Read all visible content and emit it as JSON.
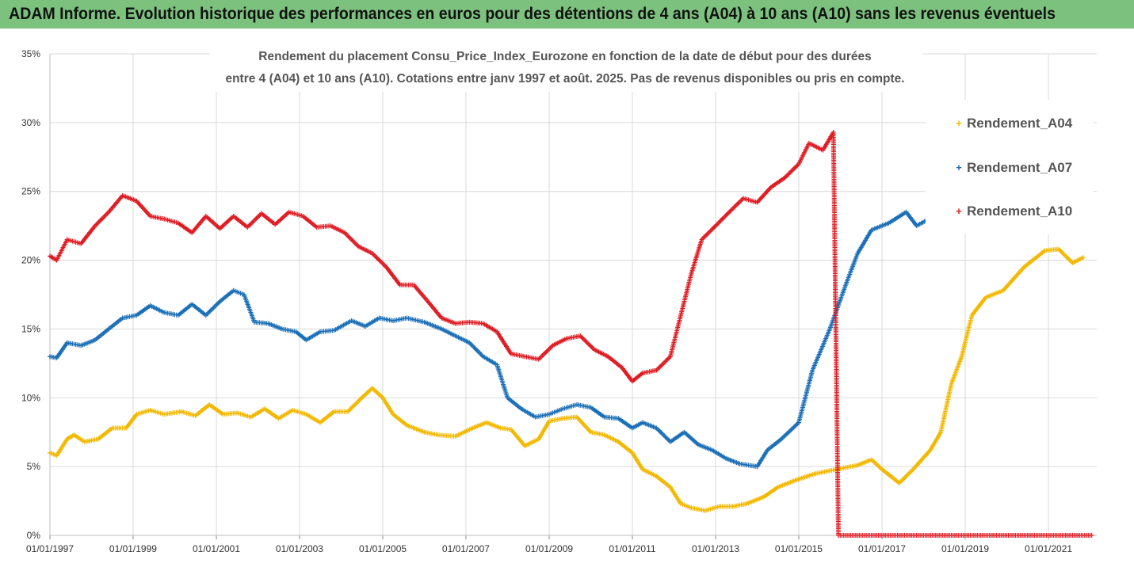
{
  "header": {
    "title": "ADAM Informe. Evolution historique des performances en euros pour des détentions de 4 ans (A04) à 10 ans (A10) sans les revenus éventuels"
  },
  "colors": {
    "banner": "#7cc27e",
    "A04": "#f2b800",
    "A07": "#1a6fb8",
    "A10": "#e01b22",
    "grid": "#d9d9d9"
  },
  "chart_data": {
    "type": "scatter",
    "subtitle": [
      "Rendement du placement Consu_Price_Index_Eurozone en fonction de la date de début pour des durées",
      "entre 4 (A04) et 10 ans (A10). Cotations entre janv 1997 et août. 2025. Pas de revenus disponibles ou pris en compte."
    ],
    "x_tick_labels": [
      "01/01/1997",
      "01/01/1999",
      "01/01/2001",
      "01/01/2003",
      "01/01/2005",
      "01/01/2007",
      "01/01/2009",
      "01/01/2011",
      "01/01/2013",
      "01/01/2015",
      "01/01/2017",
      "01/01/2019",
      "01/01/2021"
    ],
    "y_tick_labels": [
      "0%",
      "5%",
      "10%",
      "15%",
      "20%",
      "25%",
      "30%",
      "35%"
    ],
    "xlim": [
      "1997-01-01",
      "2022-03-01"
    ],
    "ylim": [
      0,
      35
    ],
    "y_unit": "%",
    "grid": true,
    "legend_position": "right",
    "series": [
      {
        "name": "Rendement_A04",
        "color_key": "A04",
        "points": [
          [
            "1997-01-01",
            6.0
          ],
          [
            "1997-03-01",
            5.8
          ],
          [
            "1997-06-01",
            7.0
          ],
          [
            "1997-08-01",
            7.3
          ],
          [
            "1997-11-01",
            6.8
          ],
          [
            "1998-03-01",
            7.0
          ],
          [
            "1998-07-01",
            7.8
          ],
          [
            "1998-11-01",
            7.8
          ],
          [
            "1999-02-01",
            8.8
          ],
          [
            "1999-06-01",
            9.1
          ],
          [
            "1999-10-01",
            8.8
          ],
          [
            "2000-03-01",
            9.0
          ],
          [
            "2000-07-01",
            8.7
          ],
          [
            "2000-11-01",
            9.5
          ],
          [
            "2001-03-01",
            8.8
          ],
          [
            "2001-07-01",
            8.9
          ],
          [
            "2001-11-01",
            8.6
          ],
          [
            "2002-03-01",
            9.2
          ],
          [
            "2002-07-01",
            8.5
          ],
          [
            "2002-11-01",
            9.1
          ],
          [
            "2003-03-01",
            8.8
          ],
          [
            "2003-07-01",
            8.2
          ],
          [
            "2003-11-01",
            9.0
          ],
          [
            "2004-03-01",
            9.0
          ],
          [
            "2004-07-01",
            10.0
          ],
          [
            "2004-10-01",
            10.7
          ],
          [
            "2005-01-01",
            10.0
          ],
          [
            "2005-04-01",
            8.8
          ],
          [
            "2005-08-01",
            8.0
          ],
          [
            "2006-01-01",
            7.5
          ],
          [
            "2006-05-01",
            7.3
          ],
          [
            "2006-10-01",
            7.2
          ],
          [
            "2007-03-01",
            7.8
          ],
          [
            "2007-07-01",
            8.2
          ],
          [
            "2007-11-01",
            7.8
          ],
          [
            "2008-02-01",
            7.7
          ],
          [
            "2008-06-01",
            6.5
          ],
          [
            "2008-10-01",
            7.0
          ],
          [
            "2009-01-01",
            8.3
          ],
          [
            "2009-05-01",
            8.5
          ],
          [
            "2009-09-01",
            8.6
          ],
          [
            "2010-01-01",
            7.5
          ],
          [
            "2010-05-01",
            7.3
          ],
          [
            "2010-09-01",
            6.8
          ],
          [
            "2011-01-01",
            6.0
          ],
          [
            "2011-04-01",
            4.8
          ],
          [
            "2011-08-01",
            4.3
          ],
          [
            "2011-12-01",
            3.5
          ],
          [
            "2012-03-01",
            2.3
          ],
          [
            "2012-06-01",
            2.0
          ],
          [
            "2012-10-01",
            1.8
          ],
          [
            "2013-02-01",
            2.1
          ],
          [
            "2013-06-01",
            2.1
          ],
          [
            "2013-10-01",
            2.3
          ],
          [
            "2014-03-01",
            2.8
          ],
          [
            "2014-07-01",
            3.5
          ],
          [
            "2014-12-01",
            4.0
          ],
          [
            "2015-06-01",
            4.5
          ],
          [
            "2015-12-01",
            4.8
          ],
          [
            "2016-06-01",
            5.1
          ],
          [
            "2016-10-01",
            5.5
          ],
          [
            "2017-01-01",
            4.8
          ],
          [
            "2017-06-01",
            3.8
          ],
          [
            "2017-10-01",
            4.8
          ],
          [
            "2018-03-01",
            6.2
          ],
          [
            "2018-06-01",
            7.5
          ],
          [
            "2018-09-01",
            11.0
          ],
          [
            "2018-12-01",
            13.0
          ],
          [
            "2019-03-01",
            16.0
          ],
          [
            "2019-07-01",
            17.3
          ],
          [
            "2019-12-01",
            17.8
          ],
          [
            "2020-06-01",
            19.5
          ],
          [
            "2020-12-01",
            20.7
          ],
          [
            "2021-04-01",
            20.8
          ],
          [
            "2021-08-01",
            19.8
          ],
          [
            "2021-11-01",
            20.2
          ]
        ]
      },
      {
        "name": "Rendement_A07",
        "color_key": "A07",
        "points": [
          [
            "1997-01-01",
            13.0
          ],
          [
            "1997-03-01",
            12.9
          ],
          [
            "1997-06-01",
            14.0
          ],
          [
            "1997-10-01",
            13.8
          ],
          [
            "1998-02-01",
            14.2
          ],
          [
            "1998-06-01",
            15.0
          ],
          [
            "1998-10-01",
            15.8
          ],
          [
            "1999-02-01",
            16.0
          ],
          [
            "1999-06-01",
            16.7
          ],
          [
            "1999-10-01",
            16.2
          ],
          [
            "2000-02-01",
            16.0
          ],
          [
            "2000-06-01",
            16.8
          ],
          [
            "2000-10-01",
            16.0
          ],
          [
            "2001-02-01",
            17.0
          ],
          [
            "2001-06-01",
            17.8
          ],
          [
            "2001-09-01",
            17.5
          ],
          [
            "2001-12-01",
            15.5
          ],
          [
            "2002-04-01",
            15.4
          ],
          [
            "2002-08-01",
            15.0
          ],
          [
            "2002-12-01",
            14.8
          ],
          [
            "2003-03-01",
            14.2
          ],
          [
            "2003-07-01",
            14.8
          ],
          [
            "2003-11-01",
            14.9
          ],
          [
            "2004-04-01",
            15.6
          ],
          [
            "2004-08-01",
            15.2
          ],
          [
            "2004-12-01",
            15.8
          ],
          [
            "2005-04-01",
            15.6
          ],
          [
            "2005-08-01",
            15.8
          ],
          [
            "2006-01-01",
            15.5
          ],
          [
            "2006-06-01",
            15.0
          ],
          [
            "2006-10-01",
            14.5
          ],
          [
            "2007-02-01",
            14.0
          ],
          [
            "2007-06-01",
            13.0
          ],
          [
            "2007-10-01",
            12.4
          ],
          [
            "2008-01-01",
            10.0
          ],
          [
            "2008-05-01",
            9.2
          ],
          [
            "2008-09-01",
            8.6
          ],
          [
            "2009-01-01",
            8.8
          ],
          [
            "2009-05-01",
            9.2
          ],
          [
            "2009-09-01",
            9.5
          ],
          [
            "2010-01-01",
            9.3
          ],
          [
            "2010-05-01",
            8.6
          ],
          [
            "2010-09-01",
            8.5
          ],
          [
            "2011-01-01",
            7.8
          ],
          [
            "2011-04-01",
            8.2
          ],
          [
            "2011-08-01",
            7.8
          ],
          [
            "2011-12-01",
            6.8
          ],
          [
            "2012-04-01",
            7.5
          ],
          [
            "2012-08-01",
            6.6
          ],
          [
            "2012-12-01",
            6.2
          ],
          [
            "2013-04-01",
            5.6
          ],
          [
            "2013-08-01",
            5.2
          ],
          [
            "2014-01-01",
            5.0
          ],
          [
            "2014-04-01",
            6.2
          ],
          [
            "2014-08-01",
            7.0
          ],
          [
            "2015-01-01",
            8.2
          ],
          [
            "2015-05-01",
            12.0
          ],
          [
            "2015-10-01",
            15.0
          ],
          [
            "2016-03-01",
            18.5
          ],
          [
            "2016-06-01",
            20.5
          ],
          [
            "2016-10-01",
            22.2
          ],
          [
            "2017-03-01",
            22.7
          ],
          [
            "2017-08-01",
            23.5
          ],
          [
            "2017-11-01",
            22.5
          ],
          [
            "2018-04-01",
            23.2
          ],
          [
            "2018-08-01",
            23.8
          ],
          [
            "2019-01-01",
            24.5
          ],
          [
            "2019-06-01",
            24.0
          ],
          [
            "2019-08-01",
            23.7
          ]
        ]
      },
      {
        "name": "Rendement_A10",
        "color_key": "A10",
        "points": [
          [
            "1997-01-01",
            20.3
          ],
          [
            "1997-03-01",
            20.0
          ],
          [
            "1997-06-01",
            21.5
          ],
          [
            "1997-10-01",
            21.2
          ],
          [
            "1998-02-01",
            22.5
          ],
          [
            "1998-06-01",
            23.5
          ],
          [
            "1998-10-01",
            24.7
          ],
          [
            "1999-02-01",
            24.3
          ],
          [
            "1999-06-01",
            23.2
          ],
          [
            "1999-10-01",
            23.0
          ],
          [
            "2000-02-01",
            22.7
          ],
          [
            "2000-06-01",
            22.0
          ],
          [
            "2000-10-01",
            23.2
          ],
          [
            "2001-02-01",
            22.3
          ],
          [
            "2001-06-01",
            23.2
          ],
          [
            "2001-10-01",
            22.4
          ],
          [
            "2002-02-01",
            23.4
          ],
          [
            "2002-06-01",
            22.6
          ],
          [
            "2002-10-01",
            23.5
          ],
          [
            "2003-02-01",
            23.2
          ],
          [
            "2003-06-01",
            22.4
          ],
          [
            "2003-10-01",
            22.5
          ],
          [
            "2004-02-01",
            22.0
          ],
          [
            "2004-06-01",
            21.0
          ],
          [
            "2004-10-01",
            20.5
          ],
          [
            "2005-02-01",
            19.5
          ],
          [
            "2005-06-01",
            18.2
          ],
          [
            "2005-10-01",
            18.2
          ],
          [
            "2006-02-01",
            17.0
          ],
          [
            "2006-06-01",
            15.8
          ],
          [
            "2006-10-01",
            15.4
          ],
          [
            "2007-02-01",
            15.5
          ],
          [
            "2007-06-01",
            15.4
          ],
          [
            "2007-10-01",
            14.8
          ],
          [
            "2008-02-01",
            13.2
          ],
          [
            "2008-06-01",
            13.0
          ],
          [
            "2008-10-01",
            12.8
          ],
          [
            "2009-02-01",
            13.8
          ],
          [
            "2009-06-01",
            14.3
          ],
          [
            "2009-10-01",
            14.5
          ],
          [
            "2010-02-01",
            13.5
          ],
          [
            "2010-06-01",
            13.0
          ],
          [
            "2010-10-01",
            12.2
          ],
          [
            "2011-01-01",
            11.2
          ],
          [
            "2011-04-01",
            11.8
          ],
          [
            "2011-08-01",
            12.0
          ],
          [
            "2011-12-01",
            13.0
          ],
          [
            "2012-03-01",
            16.0
          ],
          [
            "2012-06-01",
            19.0
          ],
          [
            "2012-09-01",
            21.5
          ],
          [
            "2013-01-01",
            22.5
          ],
          [
            "2013-05-01",
            23.5
          ],
          [
            "2013-09-01",
            24.5
          ],
          [
            "2014-01-01",
            24.2
          ],
          [
            "2014-05-01",
            25.3
          ],
          [
            "2014-09-01",
            26.0
          ],
          [
            "2015-01-01",
            27.0
          ],
          [
            "2015-04-01",
            28.5
          ],
          [
            "2015-08-01",
            28.0
          ],
          [
            "2015-11-01",
            29.3
          ],
          [
            "2015-12-15",
            0.0
          ],
          [
            "2018-01-01",
            0.0
          ],
          [
            "2020-01-01",
            0.0
          ],
          [
            "2022-01-15",
            0.0
          ]
        ]
      }
    ]
  }
}
